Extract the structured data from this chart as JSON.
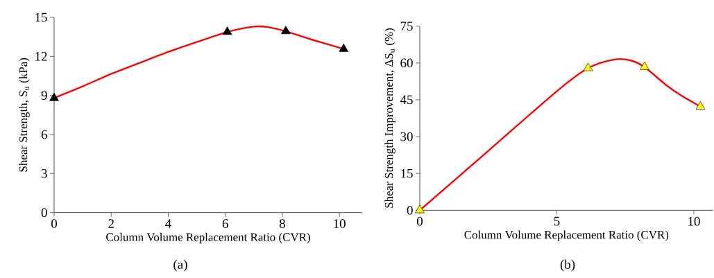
{
  "chart_data": [
    {
      "type": "line",
      "xlabel": "Column Volume Replacement Ratio (CVR)",
      "ylabel": "Shear Strength, S$_{u}$ (kPa)",
      "annotations": [
        "(a)"
      ],
      "xlim": [
        0,
        10.8
      ],
      "ylim": [
        0,
        15
      ],
      "xticks": [
        0,
        2,
        4,
        6,
        8,
        10
      ],
      "yticks": [
        0,
        3,
        6,
        9,
        12,
        15
      ],
      "series": [
        {
          "color": "#ff0000",
          "line_style": "solid",
          "x": [
            0,
            1,
            2,
            3,
            4,
            5,
            6.07,
            7,
            7.5,
            8.12,
            9,
            10.15
          ],
          "values": [
            8.8,
            9.7,
            10.65,
            11.5,
            12.34,
            13.1,
            13.88,
            14.29,
            14.25,
            13.93,
            13.31,
            12.57
          ]
        },
        {
          "type": "scatter",
          "color": "#000000",
          "marker": "triangle",
          "x": [
            0,
            6.07,
            8.12,
            10.15
          ],
          "values": [
            8.79,
            13.88,
            13.93,
            12.57
          ]
        }
      ]
    },
    {
      "type": "line",
      "xlabel": "Column Volume Replacement Ratio (CVR)",
      "ylabel": "Shear Strength Improvement, ΔS$_{u}$ (%)",
      "annotations": [
        "(b)"
      ],
      "xlim": [
        0,
        10.7
      ],
      "ylim": [
        0,
        75
      ],
      "xticks": [
        0,
        5,
        10
      ],
      "yticks": [
        0,
        15,
        30,
        45,
        60,
        75
      ],
      "series": [
        {
          "color": "#ff0000",
          "line_style": "solid",
          "x": [
            0,
            2.5,
            5,
            6.14,
            7.1,
            7.7,
            8.2,
            9,
            9.5,
            10.24
          ],
          "values": [
            0,
            24.2,
            48.5,
            57.9,
            61.4,
            61,
            58.3,
            50.9,
            47,
            42.2
          ]
        },
        {
          "type": "scatter",
          "color": "#ffff00",
          "marker": "triangle",
          "x": [
            0,
            6.14,
            8.2,
            10.24
          ],
          "values": [
            0,
            57.9,
            58.3,
            42.2
          ]
        }
      ]
    }
  ]
}
